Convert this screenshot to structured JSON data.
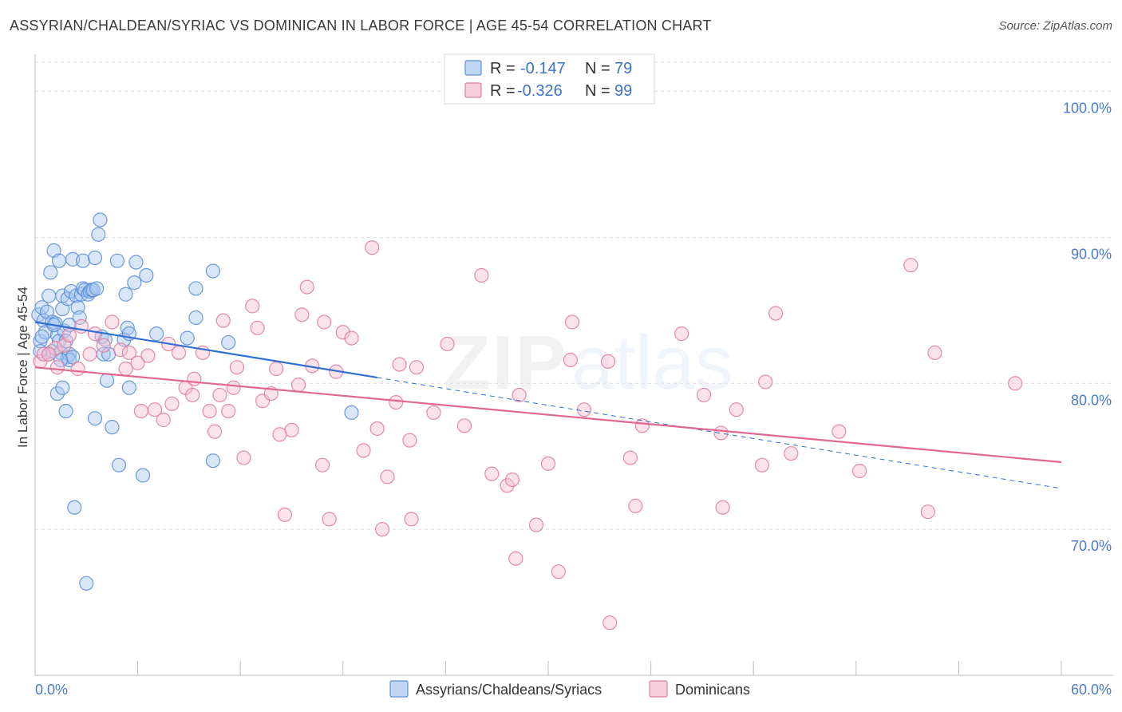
{
  "chart_data": {
    "type": "scatter",
    "title": "ASSYRIAN/CHALDEAN/SYRIAC VS DOMINICAN IN LABOR FORCE | AGE 45-54 CORRELATION CHART",
    "source": "Source: ZipAtlas.com",
    "ylabel": "In Labor Force | Age 45-54",
    "xlim": [
      0,
      60
    ],
    "ylim": [
      60,
      102
    ],
    "y_ticks": [
      {
        "value": 70,
        "label": "70.0%"
      },
      {
        "value": 80,
        "label": "80.0%"
      },
      {
        "value": 90,
        "label": "90.0%"
      },
      {
        "value": 100,
        "label": "100.0%"
      }
    ],
    "x_tick_labels": {
      "left": "0.0%",
      "right": "60.0%"
    },
    "watermark": "ZIPatlas",
    "legend_stats": [
      {
        "r_label": "R =",
        "r_value": "-0.147",
        "n_label": "N =",
        "n_value": "79"
      },
      {
        "r_label": "R =",
        "r_value": "-0.326",
        "n_label": "N =",
        "n_value": "99"
      }
    ],
    "series": [
      {
        "name": "Assyrians/Chaldeans/Syriacs",
        "fill": "#a9c8f0",
        "stroke": "#5d8fd6",
        "line_color": "#2f6fd0",
        "trend": {
          "x0": 0,
          "y0": 84.2,
          "x1": 20,
          "y1": 80.4,
          "dash_x1": 60,
          "dash_y1": 72.8
        },
        "points": [
          [
            0.2,
            84.7
          ],
          [
            0.3,
            82.9
          ],
          [
            0.4,
            85.2
          ],
          [
            0.5,
            84.3
          ],
          [
            0.6,
            83.5
          ],
          [
            0.7,
            84.9
          ],
          [
            0.8,
            86.0
          ],
          [
            0.8,
            82.0
          ],
          [
            0.9,
            87.6
          ],
          [
            1.0,
            84.2
          ],
          [
            1.0,
            82.2
          ],
          [
            1.1,
            89.1
          ],
          [
            1.2,
            84.1
          ],
          [
            1.3,
            79.3
          ],
          [
            1.3,
            83.3
          ],
          [
            1.4,
            82.9
          ],
          [
            1.4,
            88.4
          ],
          [
            1.5,
            82.1
          ],
          [
            1.6,
            86.0
          ],
          [
            1.6,
            85.1
          ],
          [
            1.6,
            79.7
          ],
          [
            1.7,
            83.6
          ],
          [
            1.8,
            82.9
          ],
          [
            1.8,
            78.1
          ],
          [
            1.9,
            81.8
          ],
          [
            1.9,
            85.8
          ],
          [
            2.0,
            82.0
          ],
          [
            2.0,
            81.6
          ],
          [
            2.1,
            86.3
          ],
          [
            2.2,
            81.8
          ],
          [
            2.2,
            88.5
          ],
          [
            2.3,
            71.5
          ],
          [
            2.4,
            86.0
          ],
          [
            2.5,
            85.2
          ],
          [
            2.6,
            84.5
          ],
          [
            2.7,
            86.1
          ],
          [
            2.8,
            88.4
          ],
          [
            2.8,
            86.5
          ],
          [
            2.9,
            86.4
          ],
          [
            3.0,
            66.3
          ],
          [
            3.1,
            86.1
          ],
          [
            3.2,
            86.3
          ],
          [
            3.3,
            86.4
          ],
          [
            3.4,
            86.4
          ],
          [
            3.5,
            88.6
          ],
          [
            3.5,
            77.6
          ],
          [
            3.7,
            90.2
          ],
          [
            3.8,
            91.2
          ],
          [
            3.9,
            83.2
          ],
          [
            4.0,
            82.0
          ],
          [
            4.2,
            80.2
          ],
          [
            4.3,
            82.0
          ],
          [
            4.5,
            77.0
          ],
          [
            4.8,
            88.4
          ],
          [
            4.9,
            74.4
          ],
          [
            5.2,
            83.0
          ],
          [
            5.3,
            86.1
          ],
          [
            5.4,
            83.8
          ],
          [
            5.5,
            79.7
          ],
          [
            5.5,
            83.4
          ],
          [
            5.8,
            86.9
          ],
          [
            5.9,
            88.3
          ],
          [
            6.3,
            73.7
          ],
          [
            6.5,
            87.4
          ],
          [
            7.1,
            83.4
          ],
          [
            8.9,
            83.1
          ],
          [
            9.4,
            86.5
          ],
          [
            9.4,
            84.5
          ],
          [
            10.4,
            87.7
          ],
          [
            10.4,
            74.7
          ],
          [
            11.3,
            82.8
          ],
          [
            18.5,
            78.0
          ],
          [
            0.4,
            83.2
          ],
          [
            1.1,
            84.0
          ],
          [
            0.3,
            82.2
          ],
          [
            1.5,
            81.6
          ],
          [
            2.0,
            84.0
          ],
          [
            3.6,
            86.5
          ],
          [
            4.1,
            83.0
          ]
        ]
      },
      {
        "name": "Dominicans",
        "fill": "#f6bfd2",
        "stroke": "#e07ea0",
        "line_color": "#e0678e",
        "trend": {
          "x0": 0,
          "y0": 81.1,
          "x1": 60,
          "y1": 74.6
        },
        "points": [
          [
            0.3,
            81.5
          ],
          [
            0.5,
            82.0
          ],
          [
            1.2,
            82.4
          ],
          [
            1.7,
            82.6
          ],
          [
            2.0,
            83.3
          ],
          [
            2.5,
            81.0
          ],
          [
            2.7,
            83.9
          ],
          [
            3.2,
            82.0
          ],
          [
            3.5,
            83.4
          ],
          [
            4.0,
            82.6
          ],
          [
            4.5,
            84.2
          ],
          [
            5.0,
            82.3
          ],
          [
            5.3,
            81.0
          ],
          [
            5.5,
            82.1
          ],
          [
            6.0,
            81.4
          ],
          [
            6.2,
            78.1
          ],
          [
            6.6,
            81.9
          ],
          [
            7.0,
            78.2
          ],
          [
            7.5,
            77.5
          ],
          [
            7.8,
            82.7
          ],
          [
            8.0,
            78.6
          ],
          [
            8.4,
            82.1
          ],
          [
            8.8,
            79.7
          ],
          [
            9.2,
            79.2
          ],
          [
            9.3,
            80.3
          ],
          [
            9.8,
            82.1
          ],
          [
            10.2,
            78.1
          ],
          [
            10.5,
            76.7
          ],
          [
            10.8,
            79.2
          ],
          [
            11.0,
            84.3
          ],
          [
            11.3,
            78.1
          ],
          [
            11.6,
            79.7
          ],
          [
            11.8,
            81.1
          ],
          [
            12.2,
            74.9
          ],
          [
            12.7,
            85.3
          ],
          [
            13.0,
            83.8
          ],
          [
            13.3,
            78.8
          ],
          [
            13.8,
            79.3
          ],
          [
            14.1,
            81.0
          ],
          [
            14.3,
            76.5
          ],
          [
            14.6,
            71.0
          ],
          [
            15.0,
            76.8
          ],
          [
            15.4,
            79.9
          ],
          [
            15.6,
            84.7
          ],
          [
            15.9,
            86.6
          ],
          [
            16.2,
            81.2
          ],
          [
            16.8,
            74.4
          ],
          [
            16.9,
            84.2
          ],
          [
            17.2,
            70.7
          ],
          [
            17.6,
            80.8
          ],
          [
            18.0,
            83.5
          ],
          [
            18.5,
            83.1
          ],
          [
            19.2,
            75.4
          ],
          [
            19.7,
            89.3
          ],
          [
            20.0,
            76.9
          ],
          [
            20.3,
            70.0
          ],
          [
            20.6,
            73.6
          ],
          [
            21.1,
            78.7
          ],
          [
            21.3,
            81.3
          ],
          [
            21.9,
            76.1
          ],
          [
            22.0,
            70.7
          ],
          [
            22.3,
            81.1
          ],
          [
            23.3,
            78.0
          ],
          [
            24.1,
            82.7
          ],
          [
            25.1,
            77.1
          ],
          [
            26.1,
            87.4
          ],
          [
            26.7,
            73.8
          ],
          [
            27.6,
            73.0
          ],
          [
            27.9,
            73.4
          ],
          [
            28.1,
            68.0
          ],
          [
            28.3,
            79.2
          ],
          [
            29.3,
            70.3
          ],
          [
            30.0,
            74.5
          ],
          [
            30.6,
            67.1
          ],
          [
            31.3,
            81.6
          ],
          [
            31.4,
            84.2
          ],
          [
            32.1,
            78.2
          ],
          [
            33.5,
            81.5
          ],
          [
            33.6,
            63.6
          ],
          [
            34.8,
            74.9
          ],
          [
            35.1,
            71.6
          ],
          [
            35.5,
            77.1
          ],
          [
            37.8,
            83.4
          ],
          [
            39.1,
            79.2
          ],
          [
            40.1,
            76.6
          ],
          [
            40.2,
            71.5
          ],
          [
            41.0,
            78.2
          ],
          [
            42.5,
            74.4
          ],
          [
            42.7,
            80.1
          ],
          [
            43.3,
            84.8
          ],
          [
            44.2,
            75.2
          ],
          [
            47.0,
            76.7
          ],
          [
            48.2,
            74.0
          ],
          [
            51.2,
            88.1
          ],
          [
            52.2,
            71.2
          ],
          [
            52.6,
            82.1
          ],
          [
            57.3,
            80.0
          ],
          [
            0.8,
            82.0
          ],
          [
            1.3,
            81.1
          ]
        ]
      }
    ]
  }
}
